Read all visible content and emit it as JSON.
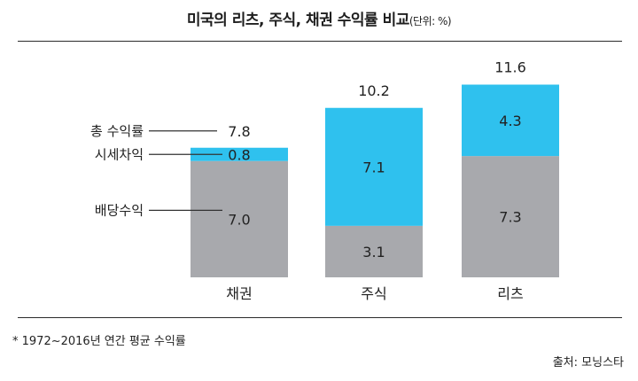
{
  "title": "미국의 리츠, 주식, 채권 수익률 비교",
  "title_unit": "(단위: %)",
  "footnote": "* 1972~2016년 연간 평균 수익률",
  "source": "출처: 모닝스타",
  "colors": {
    "capital_gain": "#2fc1ee",
    "dividend": "#a8a9ad"
  },
  "chart_data": {
    "type": "bar",
    "stacked": true,
    "categories": [
      "채권",
      "주식",
      "리츠"
    ],
    "series": [
      {
        "name": "배당수익",
        "values": [
          7.0,
          3.1,
          7.3
        ]
      },
      {
        "name": "시세차익",
        "values": [
          0.8,
          7.1,
          4.3
        ]
      }
    ],
    "totals": [
      7.8,
      10.2,
      11.6
    ],
    "total_label": "총 수익률",
    "legend_placement": "left-inline",
    "grid": false,
    "ylim": [
      0,
      12
    ]
  }
}
